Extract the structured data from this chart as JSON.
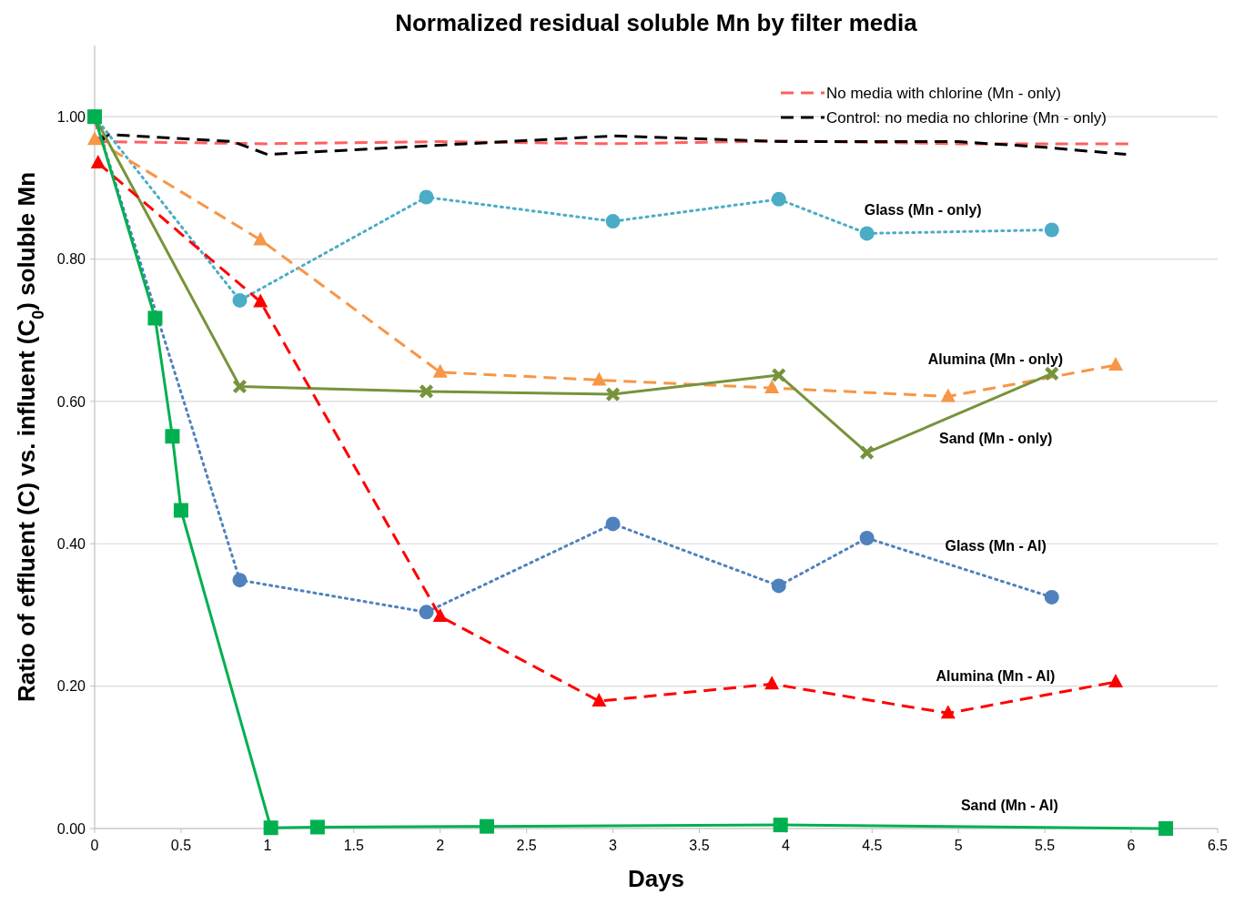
{
  "chart_data": {
    "type": "line",
    "title": "Normalized residual soluble Mn by filter media",
    "xlabel": "Days",
    "ylabel": "Ratio of effluent (C) vs. influent (C$_{0}$) soluble Mn",
    "xlim": [
      0,
      6.5
    ],
    "xticks": [
      0,
      0.5,
      1,
      1.5,
      2,
      2.5,
      3,
      3.5,
      4,
      4.5,
      5,
      5.5,
      6,
      6.5
    ],
    "ylim": [
      0,
      1.1
    ],
    "yticks": [
      {
        "value": 0,
        "label": "0.00"
      },
      {
        "value": 0.2,
        "label": "0.20"
      },
      {
        "value": 0.4,
        "label": "0.40"
      },
      {
        "value": 0.6,
        "label": "0.60"
      },
      {
        "value": 0.8,
        "label": "0.80"
      },
      {
        "value": 1,
        "label": "1.00"
      }
    ],
    "grid": "y",
    "legend": "top right",
    "series": [
      {
        "name": "No media with chlorine (Mn - only)",
        "color": "#ff5f5f",
        "line_style": "dashed",
        "marker": "none",
        "x": [
          0,
          0.03,
          1,
          2,
          3,
          4,
          5,
          6
        ],
        "values": [
          1.0,
          0.965,
          0.962,
          0.965,
          0.962,
          0.966,
          0.962,
          0.962
        ]
      },
      {
        "name": "Control: no media no chlorine (Mn - only)",
        "color": "#000000",
        "line_style": "dashed",
        "marker": "none",
        "x": [
          0,
          0.05,
          0.08,
          0.8,
          1.0,
          2,
          3,
          4,
          5,
          5.5,
          5.97
        ],
        "values": [
          1.0,
          0.968,
          0.975,
          0.965,
          0.947,
          0.96,
          0.973,
          0.965,
          0.965,
          0.957,
          0.947
        ]
      },
      {
        "name": "Glass (Mn - only)",
        "color": "#4bacc6",
        "line_style": "dotted",
        "marker": "circle",
        "x": [
          0,
          0.84,
          1.92,
          3.0,
          3.96,
          4.47,
          5.54
        ],
        "values": [
          1.0,
          0.742,
          0.887,
          0.853,
          0.884,
          0.836,
          0.841
        ]
      },
      {
        "name": "Alumina (Mn - only)",
        "color": "#f79646",
        "line_style": "dashed",
        "marker": "triangle",
        "x": [
          0,
          0.96,
          2.0,
          2.92,
          3.92,
          4.94,
          5.91
        ],
        "values": [
          0.968,
          0.827,
          0.641,
          0.63,
          0.619,
          0.607,
          0.651
        ]
      },
      {
        "name": "Sand (Mn - only)",
        "color": "#77933c",
        "line_style": "solid",
        "marker": "cross",
        "x": [
          0,
          0.84,
          1.92,
          3.0,
          3.96,
          4.47,
          5.54
        ],
        "values": [
          1.0,
          0.621,
          0.614,
          0.61,
          0.637,
          0.528,
          0.639
        ]
      },
      {
        "name": "Glass (Mn - Al)",
        "color": "#4f81bd",
        "line_style": "dotted",
        "marker": "circle",
        "x": [
          0,
          0.84,
          1.92,
          3.0,
          3.96,
          4.47,
          5.54
        ],
        "values": [
          1.0,
          0.349,
          0.304,
          0.428,
          0.341,
          0.408,
          0.325
        ]
      },
      {
        "name": "Alumina (Mn - Al)",
        "color": "#ff0000",
        "line_style": "dashed",
        "marker": "triangle",
        "x": [
          0.02,
          0.96,
          2.0,
          2.92,
          3.92,
          4.94,
          5.91
        ],
        "values": [
          0.935,
          0.74,
          0.298,
          0.179,
          0.203,
          0.162,
          0.206
        ]
      },
      {
        "name": "Sand (Mn - Al)",
        "color": "#00b050",
        "line_style": "solid",
        "marker": "square",
        "x": [
          0,
          0.35,
          0.45,
          0.5,
          1.02,
          1.29,
          2.27,
          3.97,
          6.2
        ],
        "values": [
          1.0,
          0.717,
          0.551,
          0.447,
          0.001,
          0.002,
          0.003,
          0.005,
          0.0
        ]
      }
    ]
  }
}
